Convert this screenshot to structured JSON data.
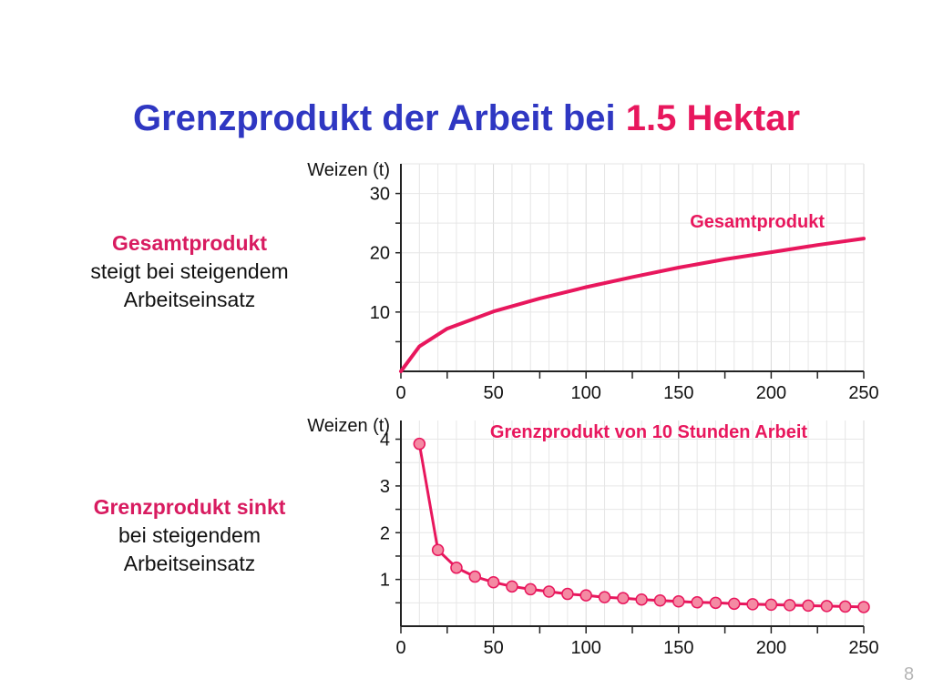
{
  "slide": {
    "title_main": "Grenzprodukt der Arbeit bei ",
    "title_accent": "1.5 Hektar",
    "page_number": "8",
    "accent_color": "#e8175d",
    "title_color": "#2f37c2"
  },
  "side_top": {
    "highlight": "Gesamtprodukt",
    "line1": "steigt bei steigendem",
    "line2": "Arbeitseinsatz"
  },
  "side_bottom": {
    "highlight": "Grenzprodukt sinkt",
    "line1": "bei steigendem",
    "line2": "Arbeitseinsatz"
  },
  "chart_data": [
    {
      "type": "line",
      "ylabel": "Weizen (t)",
      "xlabel": "",
      "series": [
        {
          "name": "Gesamtprodukt",
          "x": [
            0,
            10,
            25,
            50,
            75,
            100,
            125,
            150,
            175,
            200,
            225,
            250
          ],
          "y": [
            0,
            4.2,
            7.2,
            10.1,
            12.3,
            14.2,
            15.9,
            17.5,
            18.9,
            20.1,
            21.3,
            22.4
          ]
        }
      ],
      "xlim": [
        0,
        250
      ],
      "ylim": [
        0,
        35
      ],
      "x_ticks": [
        0,
        50,
        100,
        150,
        200,
        250
      ],
      "y_ticks": [
        10,
        20,
        30
      ],
      "grid": true,
      "line_color": "#e8175d"
    },
    {
      "type": "line",
      "ylabel": "Weizen (t)",
      "xlabel": "",
      "series": [
        {
          "name": "Grenzprodukt von 10 Stunden Arbeit",
          "x": [
            10,
            20,
            30,
            40,
            50,
            60,
            70,
            80,
            90,
            100,
            110,
            120,
            130,
            140,
            150,
            160,
            170,
            180,
            190,
            200,
            210,
            220,
            230,
            240,
            250
          ],
          "y": [
            3.9,
            1.63,
            1.25,
            1.06,
            0.94,
            0.85,
            0.79,
            0.74,
            0.69,
            0.66,
            0.62,
            0.6,
            0.57,
            0.55,
            0.53,
            0.51,
            0.5,
            0.48,
            0.47,
            0.46,
            0.45,
            0.44,
            0.43,
            0.42,
            0.41
          ]
        }
      ],
      "xlim": [
        0,
        250
      ],
      "ylim": [
        0,
        4.4
      ],
      "x_ticks": [
        0,
        50,
        100,
        150,
        200,
        250
      ],
      "y_ticks": [
        1,
        2,
        3,
        4
      ],
      "grid": true,
      "line_color": "#e8175d",
      "marker_color": "#f48aa3"
    }
  ]
}
